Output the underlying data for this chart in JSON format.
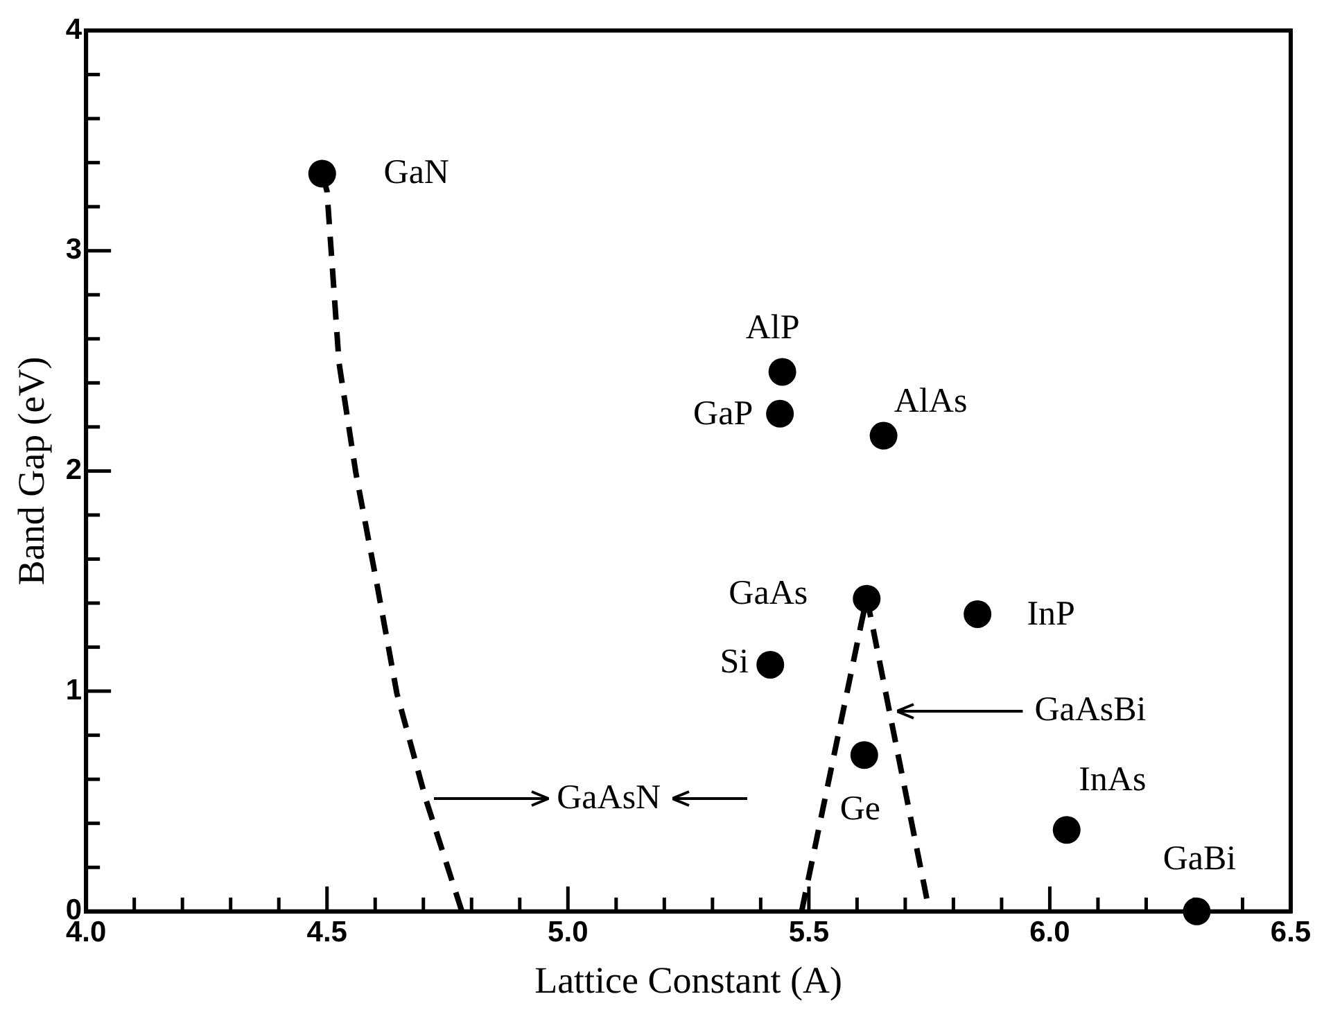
{
  "chart_data": {
    "type": "scatter",
    "xlabel": "Lattice Constant (A)",
    "ylabel": "Band Gap (eV)",
    "xlim": [
      4.0,
      6.5
    ],
    "ylim": [
      0,
      4
    ],
    "xticks": [
      {
        "value": 4.0,
        "label": "4.0"
      },
      {
        "value": 4.1,
        "label": null
      },
      {
        "value": 4.2,
        "label": null
      },
      {
        "value": 4.3,
        "label": null
      },
      {
        "value": 4.4,
        "label": null
      },
      {
        "value": 4.5,
        "label": "4.5"
      },
      {
        "value": 4.6,
        "label": null
      },
      {
        "value": 4.7,
        "label": null
      },
      {
        "value": 4.8,
        "label": null
      },
      {
        "value": 4.9,
        "label": null
      },
      {
        "value": 5.0,
        "label": "5.0"
      },
      {
        "value": 5.1,
        "label": null
      },
      {
        "value": 5.2,
        "label": null
      },
      {
        "value": 5.3,
        "label": null
      },
      {
        "value": 5.4,
        "label": null
      },
      {
        "value": 5.5,
        "label": "5.5"
      },
      {
        "value": 5.6,
        "label": null
      },
      {
        "value": 5.7,
        "label": null
      },
      {
        "value": 5.8,
        "label": null
      },
      {
        "value": 5.9,
        "label": null
      },
      {
        "value": 6.0,
        "label": "6.0"
      },
      {
        "value": 6.1,
        "label": null
      },
      {
        "value": 6.2,
        "label": null
      },
      {
        "value": 6.3,
        "label": null
      },
      {
        "value": 6.4,
        "label": null
      },
      {
        "value": 6.5,
        "label": "6.5"
      }
    ],
    "yticks": [
      0,
      {
        "value": 0.2,
        "label": null
      },
      {
        "value": 0.4,
        "label": null
      },
      {
        "value": 0.6,
        "label": null
      },
      {
        "value": 0.8,
        "label": null
      },
      1,
      {
        "value": 1.2,
        "label": null
      },
      {
        "value": 1.4,
        "label": null
      },
      {
        "value": 1.6,
        "label": null
      },
      {
        "value": 1.8,
        "label": null
      },
      2,
      {
        "value": 2.2,
        "label": null
      },
      {
        "value": 2.4,
        "label": null
      },
      {
        "value": 2.6,
        "label": null
      },
      {
        "value": 2.8,
        "label": null
      },
      3,
      {
        "value": 3.2,
        "label": null
      },
      {
        "value": 3.4,
        "label": null
      },
      {
        "value": 3.6,
        "label": null
      },
      {
        "value": 3.8,
        "label": null
      },
      4
    ],
    "grid": false,
    "legend": false,
    "series": [
      {
        "type": "scatter",
        "color": "#000000",
        "marker": "circle",
        "x": [
          4.49,
          5.445,
          5.44,
          5.655,
          5.62,
          5.85,
          5.42,
          5.615,
          6.035,
          6.305
        ],
        "values": [
          3.35,
          2.45,
          2.26,
          2.16,
          1.42,
          1.35,
          1.12,
          0.71,
          0.37,
          0
        ]
      },
      {
        "type": "line",
        "color": "#000000",
        "marker": "none",
        "line_style": "dashed",
        "x": [
          4.49,
          4.5,
          4.525,
          4.56,
          4.605,
          4.645,
          4.705,
          4.78
        ],
        "values": [
          3.35,
          3.27,
          2.49,
          1.99,
          1.47,
          0.99,
          0.51,
          0
        ]
      },
      {
        "type": "line",
        "color": "#000000",
        "marker": "none",
        "line_style": "dashed",
        "x": [
          5.485,
          5.61,
          5.62,
          5.63,
          5.667,
          5.75
        ],
        "values": [
          0,
          1.32,
          1.42,
          1.32,
          0.91,
          0
        ]
      }
    ],
    "annotations": [
      {
        "text": "GaN",
        "x": 4.49,
        "y": 3.35
      },
      {
        "text": "AlP",
        "x": 5.445,
        "y": 2.45
      },
      {
        "text": "GaP",
        "x": 5.44,
        "y": 2.26
      },
      {
        "text": "AlAs",
        "x": 5.655,
        "y": 2.16
      },
      {
        "text": "GaAs",
        "x": 5.62,
        "y": 1.42
      },
      {
        "text": "InP",
        "x": 5.85,
        "y": 1.35
      },
      {
        "text": "Si",
        "x": 5.42,
        "y": 1.12
      },
      {
        "text": "Ge",
        "x": 5.615,
        "y": 0.71
      },
      {
        "text": "InAs",
        "x": 6.035,
        "y": 0.37
      },
      {
        "text": "GaBi",
        "x": 6.305,
        "y": 0
      },
      "GaAsN",
      "GaAsBi"
    ]
  }
}
